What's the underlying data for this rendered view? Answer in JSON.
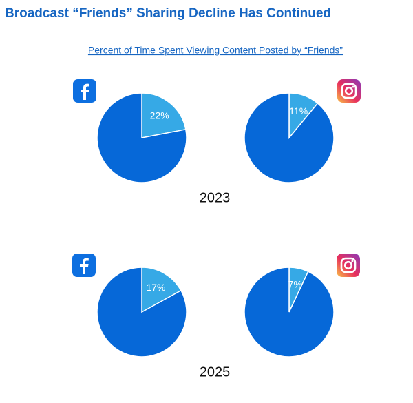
{
  "title": "Broadcast “Friends” Sharing Decline Has Continued",
  "subtitle": "Percent of Time Spent Viewing Content Posted by “Friends”",
  "row_labels": [
    "2023",
    "2025"
  ],
  "chart_data": [
    {
      "type": "pie",
      "values": [
        22,
        78
      ],
      "value_labels": [
        "22%",
        null
      ],
      "colors": [
        "#36a9e6",
        "#0668d8"
      ]
    },
    {
      "type": "pie",
      "values": [
        11,
        89
      ],
      "value_labels": [
        "11%",
        null
      ],
      "colors": [
        "#36a9e6",
        "#0668d8"
      ]
    },
    {
      "type": "pie",
      "values": [
        17,
        83
      ],
      "value_labels": [
        "17%",
        null
      ],
      "colors": [
        "#36a9e6",
        "#0668d8"
      ]
    },
    {
      "type": "pie",
      "values": [
        7,
        93
      ],
      "value_labels": [
        "7%",
        null
      ],
      "colors": [
        "#36a9e6",
        "#0668d8"
      ]
    }
  ]
}
